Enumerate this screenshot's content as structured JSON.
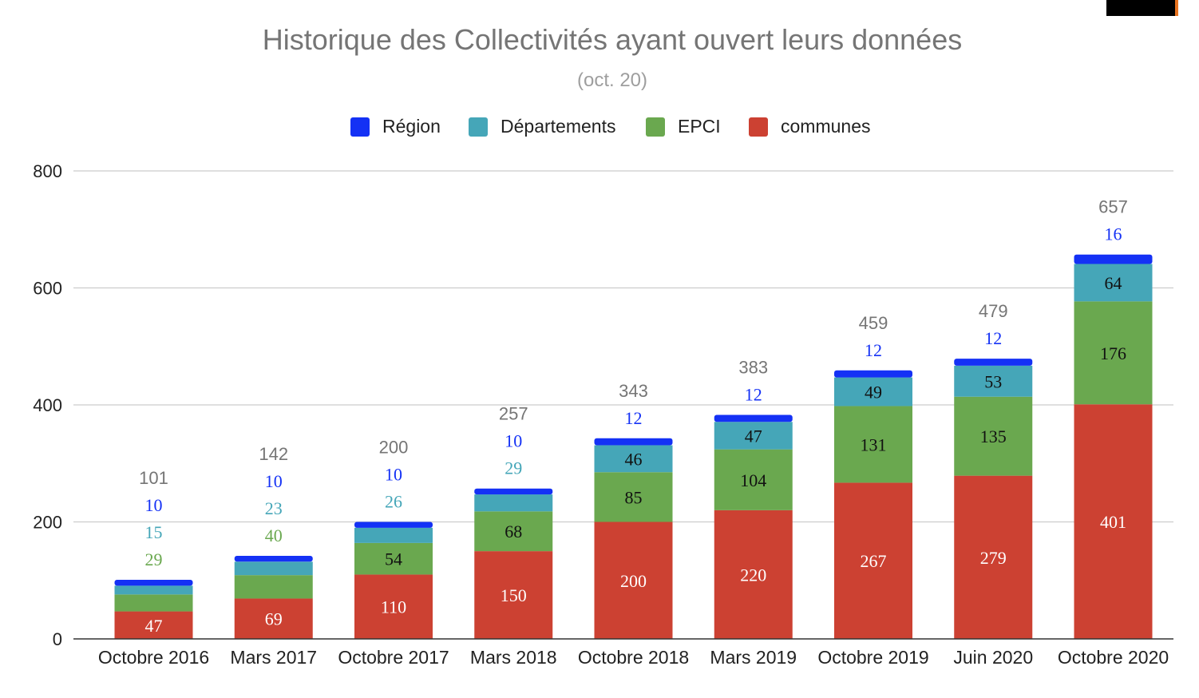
{
  "chart_data": {
    "type": "bar",
    "stacked": true,
    "title": "Historique des Collectivités ayant ouvert leurs données",
    "subtitle": "(oct. 20)",
    "categories": [
      "Octobre 2016",
      "Mars 2017",
      "Octobre 2017",
      "Mars 2018",
      "Octobre 2018",
      "Mars 2019",
      "Octobre 2019",
      "Juin 2020",
      "Octobre 2020"
    ],
    "series": [
      {
        "name": "communes",
        "color": "#cc4132",
        "label_color": "#ffffff",
        "values": [
          47,
          69,
          110,
          150,
          200,
          220,
          267,
          279,
          401
        ]
      },
      {
        "name": "EPCI",
        "color": "#6aa84f",
        "label_color": "#111111",
        "values": [
          29,
          40,
          54,
          68,
          85,
          104,
          131,
          135,
          176
        ]
      },
      {
        "name": "Départements",
        "color": "#45a6b8",
        "label_color": "#111111",
        "values": [
          15,
          23,
          26,
          29,
          46,
          47,
          49,
          53,
          64
        ]
      },
      {
        "name": "Région",
        "color": "#1431f5",
        "label_color": "#1431f5",
        "values": [
          10,
          10,
          10,
          10,
          12,
          12,
          12,
          12,
          16
        ]
      }
    ],
    "totals": [
      101,
      142,
      200,
      257,
      343,
      383,
      459,
      479,
      657
    ],
    "legend_order": [
      "Région",
      "Départements",
      "EPCI",
      "communes"
    ],
    "legend_position": "top",
    "ylim": [
      0,
      800
    ],
    "yticks": [
      0,
      200,
      400,
      600,
      800
    ],
    "grid": true,
    "xlabel": "",
    "ylabel": ""
  }
}
